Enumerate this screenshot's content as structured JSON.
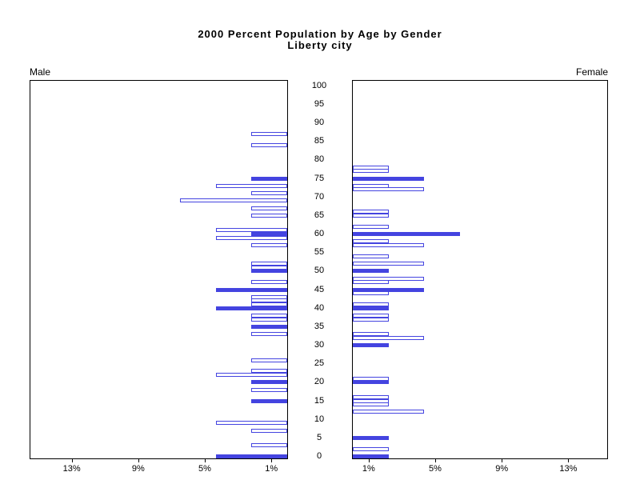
{
  "title": {
    "line1": "2000 Percent Population by Age by Gender",
    "line2": "Liberty city"
  },
  "panels": {
    "male_label": "Male",
    "female_label": "Female"
  },
  "axes": {
    "age_tick_labels": [
      "0",
      "5",
      "10",
      "15",
      "20",
      "25",
      "30",
      "35",
      "40",
      "45",
      "50",
      "55",
      "60",
      "65",
      "70",
      "75",
      "80",
      "85",
      "90",
      "95",
      "100"
    ],
    "male_pct_ticks": [
      {
        "pct": 13,
        "label": "13%"
      },
      {
        "pct": 9,
        "label": "9%"
      },
      {
        "pct": 5,
        "label": "5%"
      },
      {
        "pct": 1,
        "label": "1%"
      }
    ],
    "female_pct_ticks": [
      {
        "pct": 1,
        "label": "1%"
      },
      {
        "pct": 5,
        "label": "5%"
      },
      {
        "pct": 9,
        "label": "9%"
      },
      {
        "pct": 13,
        "label": "13%"
      }
    ]
  },
  "colors": {
    "bar_blue": "#4444e0",
    "frame": "#000000"
  },
  "chart_data": {
    "type": "bar",
    "subtype": "population-pyramid",
    "title": "2000 Percent Population by Age by Gender",
    "subtitle": "Liberty city",
    "xlabel_left_max": "13%",
    "x_axis_range_pct": [
      0,
      15.4
    ],
    "y_axis": "age (years), 0 to 100, labeled every 5",
    "legend": "solid bars = filled (heaped/emphasized) ages, outlined bars = other single ages",
    "male": [
      {
        "age": 87,
        "pct": 2.15,
        "filled": false
      },
      {
        "age": 84,
        "pct": 2.15,
        "filled": false
      },
      {
        "age": 75,
        "pct": 2.15,
        "filled": true
      },
      {
        "age": 73,
        "pct": 4.3,
        "filled": false
      },
      {
        "age": 71,
        "pct": 2.15,
        "filled": false
      },
      {
        "age": 69,
        "pct": 6.45,
        "filled": false
      },
      {
        "age": 67,
        "pct": 2.15,
        "filled": false
      },
      {
        "age": 65,
        "pct": 2.15,
        "filled": false
      },
      {
        "age": 61,
        "pct": 4.3,
        "filled": false
      },
      {
        "age": 60,
        "pct": 2.15,
        "filled": true
      },
      {
        "age": 59,
        "pct": 4.3,
        "filled": false
      },
      {
        "age": 57,
        "pct": 2.15,
        "filled": false
      },
      {
        "age": 52,
        "pct": 2.15,
        "filled": false
      },
      {
        "age": 51,
        "pct": 2.15,
        "filled": false
      },
      {
        "age": 50,
        "pct": 2.15,
        "filled": true
      },
      {
        "age": 47,
        "pct": 2.15,
        "filled": false
      },
      {
        "age": 45,
        "pct": 4.3,
        "filled": true
      },
      {
        "age": 43,
        "pct": 2.15,
        "filled": false
      },
      {
        "age": 42,
        "pct": 2.15,
        "filled": false
      },
      {
        "age": 41,
        "pct": 2.15,
        "filled": false
      },
      {
        "age": 40,
        "pct": 4.3,
        "filled": true
      },
      {
        "age": 38,
        "pct": 2.15,
        "filled": false
      },
      {
        "age": 37,
        "pct": 2.15,
        "filled": false
      },
      {
        "age": 35,
        "pct": 2.15,
        "filled": true
      },
      {
        "age": 33,
        "pct": 2.15,
        "filled": false
      },
      {
        "age": 26,
        "pct": 2.15,
        "filled": false
      },
      {
        "age": 23,
        "pct": 2.15,
        "filled": false
      },
      {
        "age": 22,
        "pct": 4.3,
        "filled": false
      },
      {
        "age": 20,
        "pct": 2.15,
        "filled": true
      },
      {
        "age": 18,
        "pct": 2.15,
        "filled": false
      },
      {
        "age": 15,
        "pct": 2.15,
        "filled": true
      },
      {
        "age": 9,
        "pct": 4.3,
        "filled": false
      },
      {
        "age": 7,
        "pct": 2.15,
        "filled": false
      },
      {
        "age": 3,
        "pct": 2.15,
        "filled": false
      },
      {
        "age": 0,
        "pct": 4.3,
        "filled": true
      }
    ],
    "female": [
      {
        "age": 78,
        "pct": 2.15,
        "filled": false
      },
      {
        "age": 77,
        "pct": 2.15,
        "filled": false
      },
      {
        "age": 75,
        "pct": 4.3,
        "filled": true
      },
      {
        "age": 73,
        "pct": 2.15,
        "filled": false
      },
      {
        "age": 72,
        "pct": 4.3,
        "filled": false
      },
      {
        "age": 66,
        "pct": 2.15,
        "filled": false
      },
      {
        "age": 65,
        "pct": 2.15,
        "filled": false
      },
      {
        "age": 62,
        "pct": 2.15,
        "filled": false
      },
      {
        "age": 60,
        "pct": 6.45,
        "filled": true
      },
      {
        "age": 58,
        "pct": 2.15,
        "filled": false
      },
      {
        "age": 57,
        "pct": 4.3,
        "filled": false
      },
      {
        "age": 54,
        "pct": 2.15,
        "filled": false
      },
      {
        "age": 52,
        "pct": 4.3,
        "filled": false
      },
      {
        "age": 50,
        "pct": 2.15,
        "filled": true
      },
      {
        "age": 48,
        "pct": 4.3,
        "filled": false
      },
      {
        "age": 47,
        "pct": 2.15,
        "filled": false
      },
      {
        "age": 45,
        "pct": 4.3,
        "filled": true
      },
      {
        "age": 44,
        "pct": 2.15,
        "filled": false
      },
      {
        "age": 41,
        "pct": 2.15,
        "filled": false
      },
      {
        "age": 40,
        "pct": 2.15,
        "filled": true
      },
      {
        "age": 38,
        "pct": 2.15,
        "filled": false
      },
      {
        "age": 37,
        "pct": 2.15,
        "filled": false
      },
      {
        "age": 33,
        "pct": 2.15,
        "filled": false
      },
      {
        "age": 32,
        "pct": 4.3,
        "filled": false
      },
      {
        "age": 30,
        "pct": 2.15,
        "filled": true
      },
      {
        "age": 21,
        "pct": 2.15,
        "filled": false
      },
      {
        "age": 20,
        "pct": 2.15,
        "filled": true
      },
      {
        "age": 16,
        "pct": 2.15,
        "filled": false
      },
      {
        "age": 15,
        "pct": 2.15,
        "filled": false
      },
      {
        "age": 14,
        "pct": 2.15,
        "filled": false
      },
      {
        "age": 12,
        "pct": 4.3,
        "filled": false
      },
      {
        "age": 5,
        "pct": 2.15,
        "filled": true
      },
      {
        "age": 2,
        "pct": 2.15,
        "filled": false
      },
      {
        "age": 0,
        "pct": 2.15,
        "filled": true
      }
    ]
  }
}
